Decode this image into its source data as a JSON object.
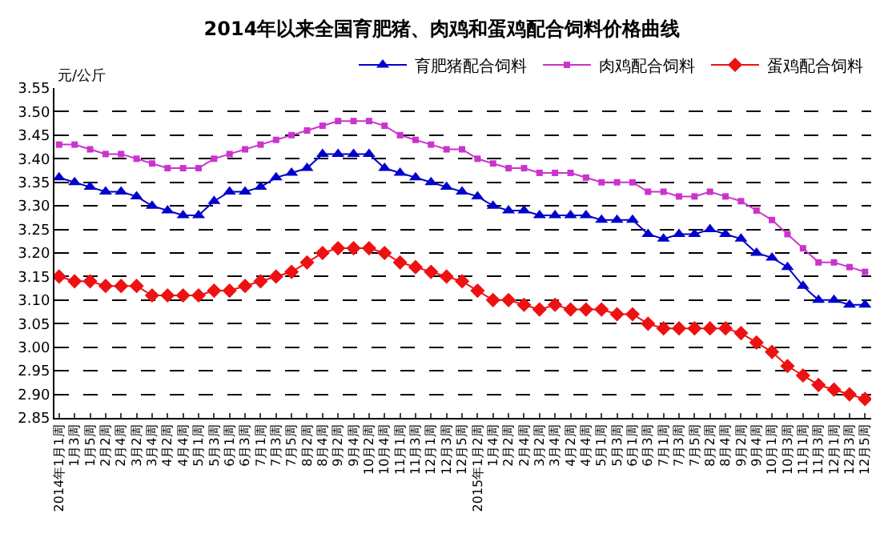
{
  "chart_data": {
    "type": "line",
    "title": "2014年以来全国育肥猪、肉鸡和蛋鸡配合饲料价格曲线",
    "ylabel": "元/公斤",
    "categories": [
      "2014年1月1周",
      "1月3周",
      "1月5周",
      "2月2周",
      "2月4周",
      "3月2周",
      "3月4周",
      "4月2周",
      "4月4周",
      "5月1周",
      "5月3周",
      "6月1周",
      "6月3周",
      "7月1周",
      "7月3周",
      "7月5周",
      "8月2周",
      "8月4周",
      "9月2周",
      "9月4周",
      "10月2周",
      "10月4周",
      "11月1周",
      "11月3周",
      "12月1周",
      "12月3周",
      "12月5周",
      "2015年1月2周",
      "1月4周",
      "2月2周",
      "2月4周",
      "3月2周",
      "3月4周",
      "4月2周",
      "4月4周",
      "5月1周",
      "5月3周",
      "6月1周",
      "6月3周",
      "7月1周",
      "7月3周",
      "7月5周",
      "8月2周",
      "8月4周",
      "9月2周",
      "9月4周",
      "10月1周",
      "10月3周",
      "11月1周",
      "11月3周",
      "12月1周",
      "12月3周",
      "12月5周"
    ],
    "series": [
      {
        "name": "育肥猪配合饲料",
        "color": "#0000cc",
        "marker": "triangle",
        "values": [
          3.36,
          3.35,
          3.34,
          3.33,
          3.33,
          3.32,
          3.3,
          3.29,
          3.28,
          3.28,
          3.31,
          3.33,
          3.33,
          3.34,
          3.36,
          3.37,
          3.38,
          3.41,
          3.41,
          3.41,
          3.41,
          3.38,
          3.37,
          3.36,
          3.35,
          3.34,
          3.33,
          3.32,
          3.3,
          3.29,
          3.29,
          3.28,
          3.28,
          3.28,
          3.28,
          3.27,
          3.27,
          3.27,
          3.24,
          3.23,
          3.24,
          3.24,
          3.25,
          3.24,
          3.23,
          3.2,
          3.19,
          3.17,
          3.13,
          3.1,
          3.1,
          3.09,
          3.09
        ]
      },
      {
        "name": "肉鸡配合饲料",
        "color": "#cc33cc",
        "marker": "square",
        "values": [
          3.43,
          3.43,
          3.42,
          3.41,
          3.41,
          3.4,
          3.39,
          3.38,
          3.38,
          3.38,
          3.4,
          3.41,
          3.42,
          3.43,
          3.44,
          3.45,
          3.46,
          3.47,
          3.48,
          3.48,
          3.48,
          3.47,
          3.45,
          3.44,
          3.43,
          3.42,
          3.42,
          3.4,
          3.39,
          3.38,
          3.38,
          3.37,
          3.37,
          3.37,
          3.36,
          3.35,
          3.35,
          3.35,
          3.33,
          3.33,
          3.32,
          3.32,
          3.33,
          3.32,
          3.31,
          3.29,
          3.27,
          3.24,
          3.21,
          3.18,
          3.18,
          3.17,
          3.16
        ]
      },
      {
        "name": "蛋鸡配合饲料",
        "color": "#ee1111",
        "marker": "diamond",
        "values": [
          3.15,
          3.14,
          3.14,
          3.13,
          3.13,
          3.13,
          3.11,
          3.11,
          3.11,
          3.11,
          3.12,
          3.12,
          3.13,
          3.14,
          3.15,
          3.16,
          3.18,
          3.2,
          3.21,
          3.21,
          3.21,
          3.2,
          3.18,
          3.17,
          3.16,
          3.15,
          3.14,
          3.12,
          3.1,
          3.1,
          3.09,
          3.08,
          3.09,
          3.08,
          3.08,
          3.08,
          3.07,
          3.07,
          3.05,
          3.04,
          3.04,
          3.04,
          3.04,
          3.04,
          3.03,
          3.01,
          2.99,
          2.96,
          2.94,
          2.92,
          2.91,
          2.9,
          2.89
        ]
      }
    ],
    "ylim": [
      2.85,
      3.55
    ],
    "yticks": [
      {
        "value": 2.85,
        "label": "2.85"
      },
      {
        "value": 2.9,
        "label": "2.90"
      },
      {
        "value": 2.95,
        "label": "2.95"
      },
      {
        "value": 3.0,
        "label": "3.00"
      },
      {
        "value": 3.05,
        "label": "3.05"
      },
      {
        "value": 3.1,
        "label": "3.10"
      },
      {
        "value": 3.15,
        "label": "3.15"
      },
      {
        "value": 3.2,
        "label": "3.20"
      },
      {
        "value": 3.25,
        "label": "3.25"
      },
      {
        "value": 3.3,
        "label": "3.30"
      },
      {
        "value": 3.35,
        "label": "3.35"
      },
      {
        "value": 3.4,
        "label": "3.40"
      },
      {
        "value": 3.45,
        "label": "3.45"
      },
      {
        "value": 3.5,
        "label": "3.50"
      },
      {
        "value": 3.55,
        "label": "3.55"
      }
    ],
    "grid": "y",
    "legend": "top right",
    "line_style": "solid"
  }
}
